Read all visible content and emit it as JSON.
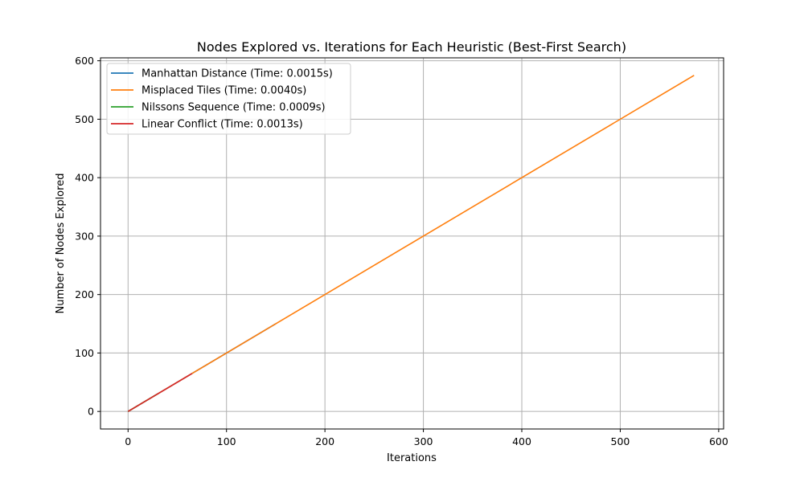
{
  "chart_data": {
    "type": "line",
    "title": "Nodes Explored vs. Iterations for Each Heuristic (Best-First Search)",
    "xlabel": "Iterations",
    "ylabel": "Number of Nodes Explored",
    "xlim": [
      -28,
      605
    ],
    "ylim": [
      -30,
      605
    ],
    "xticks": [
      0,
      100,
      200,
      300,
      400,
      500,
      600
    ],
    "yticks": [
      0,
      100,
      200,
      300,
      400,
      500,
      600
    ],
    "grid": true,
    "legend_position": "top-left",
    "series": [
      {
        "name": "Manhattan Distance (Time: 0.0015s)",
        "color": "#1f77b4",
        "x": [
          0,
          150
        ],
        "y": [
          0,
          150
        ]
      },
      {
        "name": "Misplaced Tiles (Time: 0.0040s)",
        "color": "#ff7f0e",
        "x": [
          0,
          575
        ],
        "y": [
          0,
          575
        ]
      },
      {
        "name": "Nilssons Sequence (Time: 0.0009s)",
        "color": "#2ca02c",
        "x": [
          0,
          30
        ],
        "y": [
          0,
          30
        ]
      },
      {
        "name": "Linear Conflict (Time: 0.0013s)",
        "color": "#d62728",
        "x": [
          0,
          65
        ],
        "y": [
          0,
          65
        ]
      }
    ]
  }
}
